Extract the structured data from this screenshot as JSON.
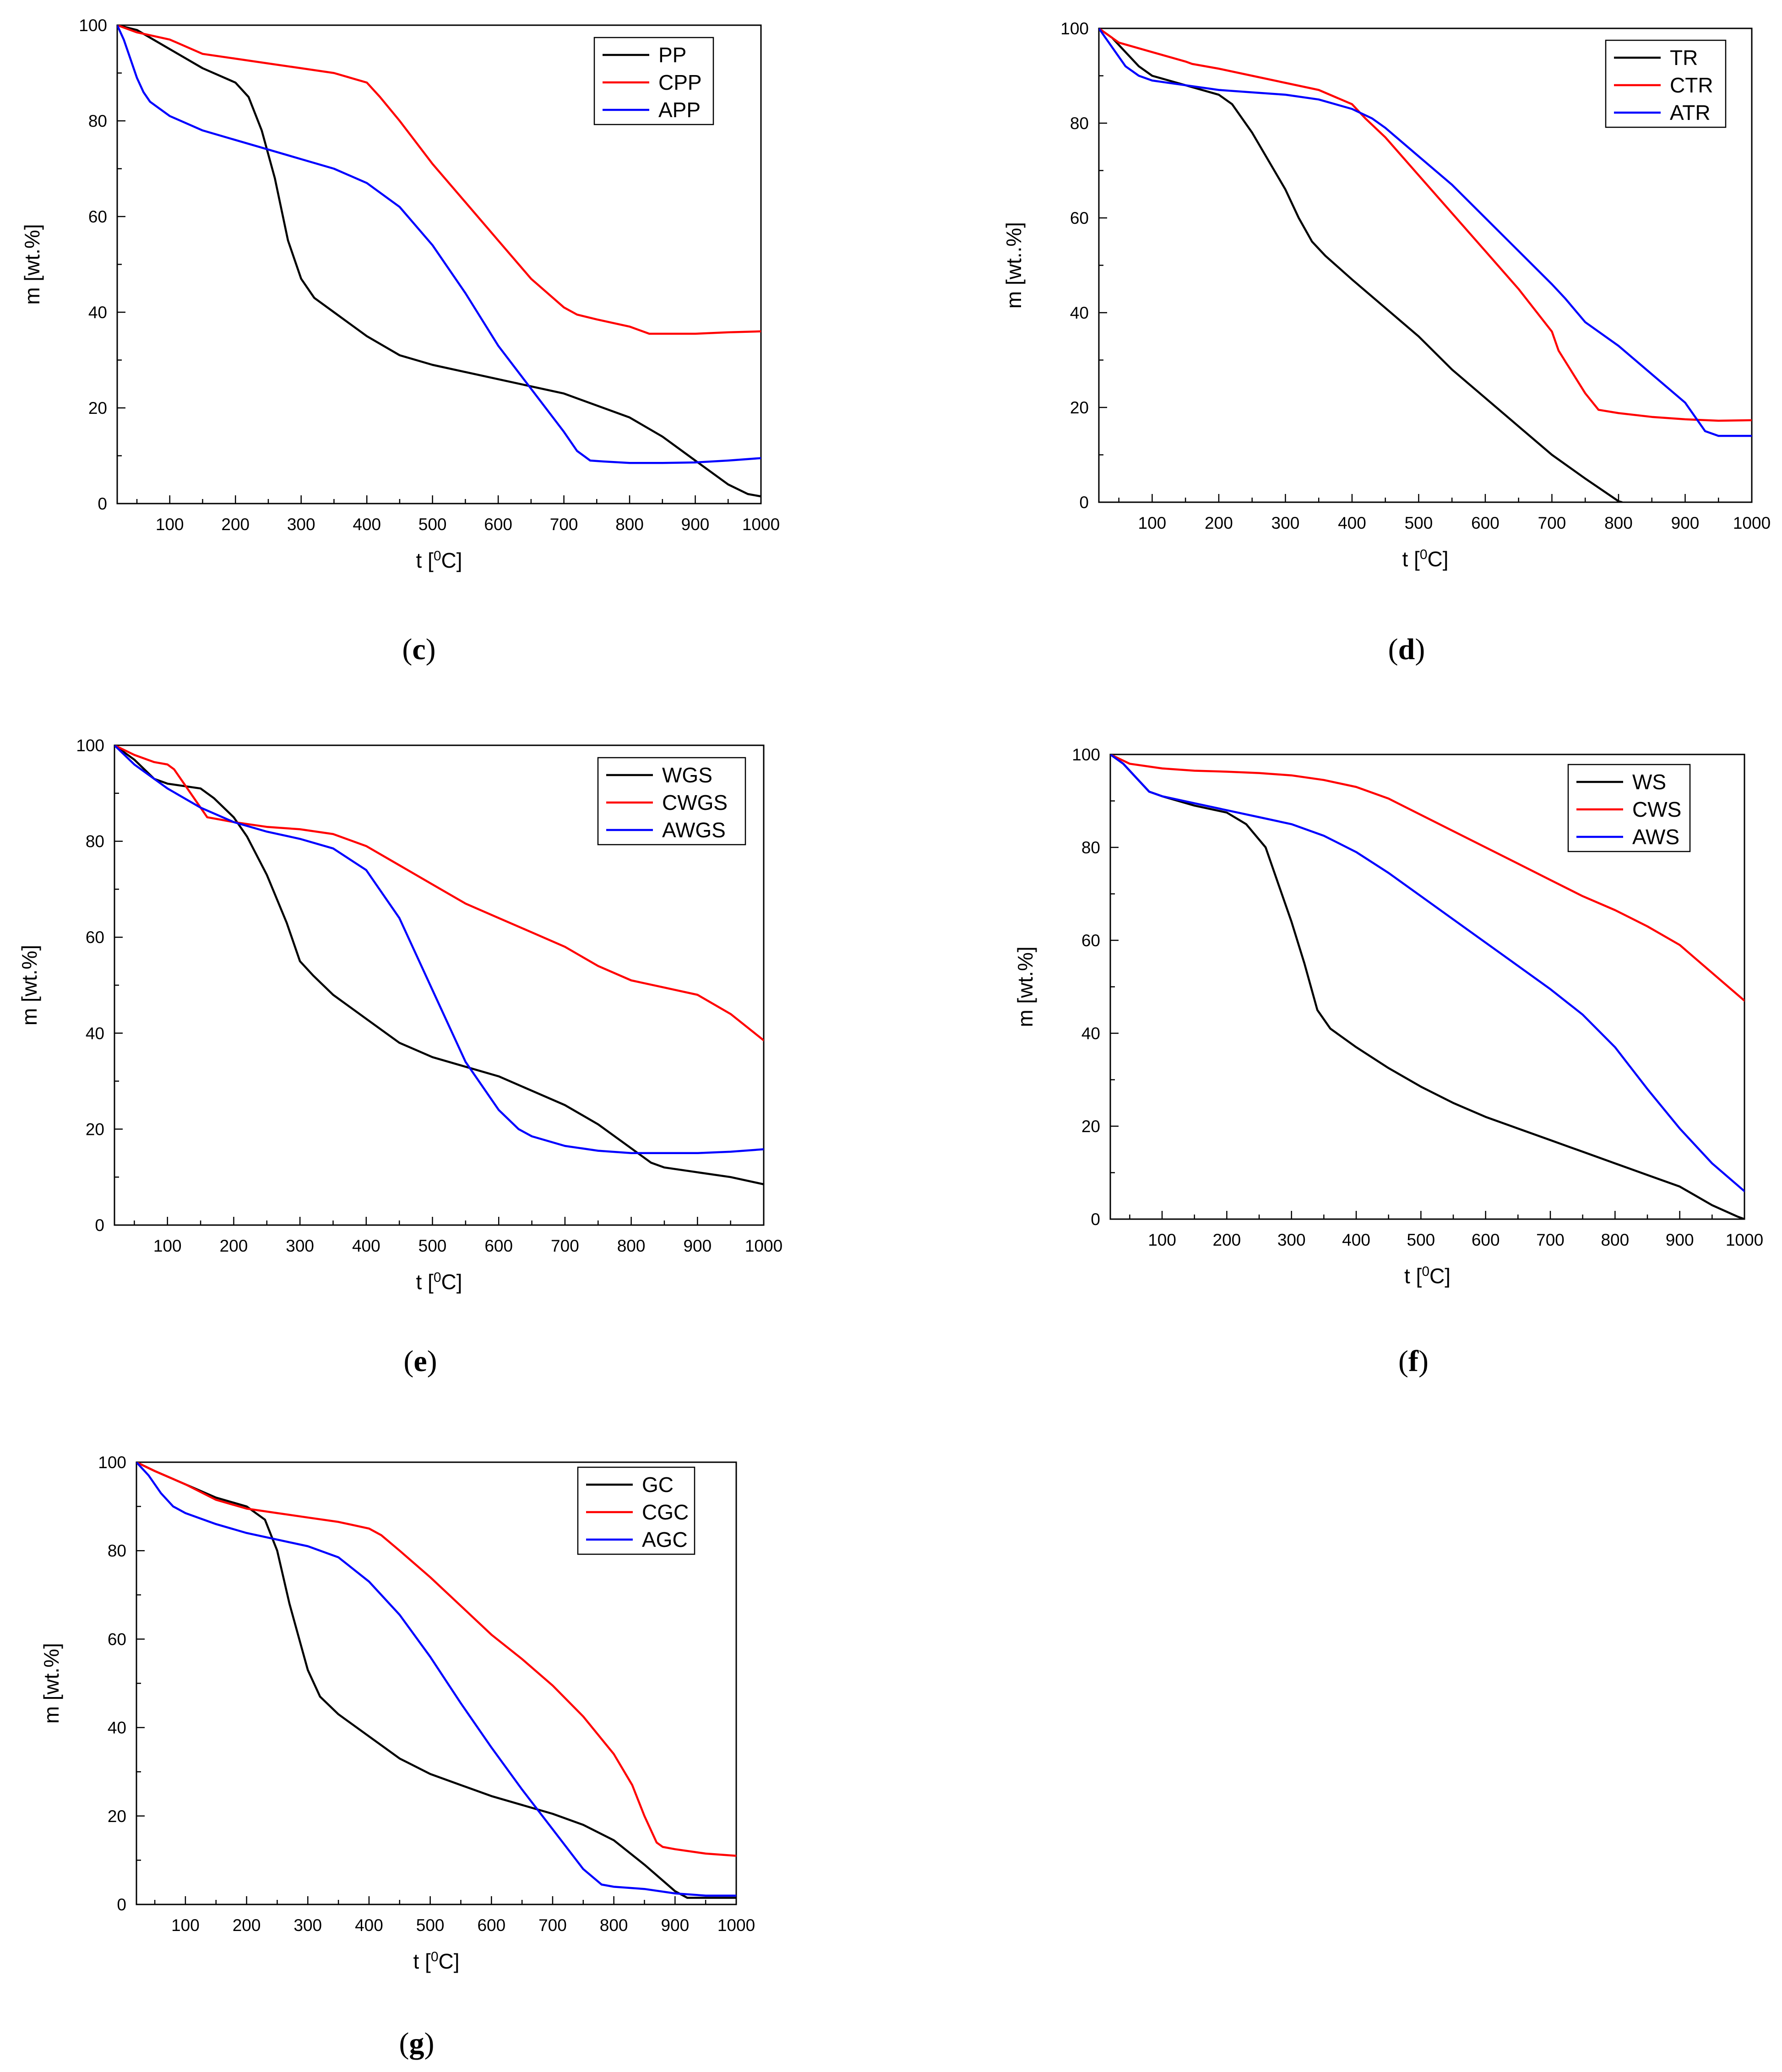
{
  "figure": {
    "panels": [
      "c",
      "d",
      "e",
      "f",
      "g"
    ]
  },
  "chart_data": [
    {
      "id": "c",
      "type": "line",
      "caption_letter": "c",
      "xlabel_base": "t  [",
      "xlabel_sup": "0",
      "xlabel_unit": "C]",
      "ylabel": "m [wt.%]",
      "xlim": [
        20,
        1000
      ],
      "ylim": [
        0,
        100
      ],
      "xticks": [
        100,
        200,
        300,
        400,
        500,
        600,
        700,
        800,
        900,
        1000
      ],
      "yticks": [
        0,
        20,
        40,
        60,
        80,
        100
      ],
      "legend_position": "top-right",
      "series": [
        {
          "name": "PP",
          "color": "#000000",
          "x": [
            20,
            50,
            100,
            150,
            200,
            220,
            240,
            260,
            280,
            300,
            320,
            350,
            400,
            450,
            500,
            600,
            700,
            800,
            850,
            900,
            950,
            980,
            1000
          ],
          "y": [
            100,
            99,
            95,
            91,
            88,
            85,
            78,
            68,
            55,
            47,
            43,
            40,
            35,
            31,
            29,
            26,
            23,
            18,
            14,
            9,
            4,
            2,
            1.5
          ]
        },
        {
          "name": "CPP",
          "color": "#ff0000",
          "x": [
            20,
            50,
            100,
            150,
            200,
            250,
            300,
            350,
            400,
            420,
            450,
            500,
            550,
            600,
            650,
            700,
            720,
            750,
            800,
            830,
            850,
            900,
            950,
            1000
          ],
          "y": [
            100,
            98.5,
            97,
            94,
            93,
            92,
            91,
            90,
            88,
            85,
            80,
            71,
            63,
            55,
            47,
            41,
            39.5,
            38.5,
            37,
            35.5,
            35.5,
            35.5,
            35.8,
            36
          ]
        },
        {
          "name": "APP",
          "color": "#0000ff",
          "x": [
            20,
            30,
            40,
            50,
            60,
            70,
            80,
            100,
            150,
            200,
            250,
            300,
            350,
            400,
            450,
            500,
            550,
            600,
            650,
            700,
            720,
            740,
            760,
            800,
            850,
            900,
            950,
            1000
          ],
          "y": [
            100,
            97,
            93,
            89,
            86,
            84,
            83,
            81,
            78,
            76,
            74,
            72,
            70,
            67,
            62,
            54,
            44,
            33,
            24,
            15,
            11,
            9,
            8.8,
            8.5,
            8.5,
            8.6,
            9,
            9.5
          ]
        }
      ]
    },
    {
      "id": "d",
      "type": "line",
      "caption_letter": "d",
      "xlabel_base": "t [",
      "xlabel_sup": "0",
      "xlabel_unit": "C]",
      "ylabel": "m [wt..%]",
      "xlim": [
        20,
        1000
      ],
      "ylim": [
        0,
        100
      ],
      "xticks": [
        100,
        200,
        300,
        400,
        500,
        600,
        700,
        800,
        900,
        1000
      ],
      "yticks": [
        0,
        20,
        40,
        60,
        80,
        100
      ],
      "legend_position": "top-right",
      "series": [
        {
          "name": "TR",
          "color": "#000000",
          "x": [
            20,
            40,
            60,
            80,
            100,
            150,
            200,
            220,
            250,
            300,
            320,
            340,
            360,
            400,
            450,
            500,
            550,
            600,
            650,
            700,
            750,
            800,
            805
          ],
          "y": [
            100,
            98,
            95,
            92,
            90,
            88,
            86,
            84,
            78,
            66,
            60,
            55,
            52,
            47,
            41,
            35,
            28,
            22,
            16,
            10,
            5,
            0.2,
            0
          ]
        },
        {
          "name": "CTR",
          "color": "#ff0000",
          "x": [
            20,
            50,
            100,
            150,
            160,
            200,
            250,
            300,
            350,
            400,
            420,
            450,
            500,
            550,
            600,
            650,
            700,
            710,
            750,
            770,
            800,
            850,
            900,
            950,
            1000
          ],
          "y": [
            100,
            97,
            95,
            93,
            92.5,
            91.5,
            90,
            88.5,
            87,
            84,
            81,
            77,
            69,
            61,
            53,
            45,
            36,
            32,
            23,
            19.5,
            18.8,
            18,
            17.5,
            17.2,
            17.3
          ]
        },
        {
          "name": "ATR",
          "color": "#0000ff",
          "x": [
            20,
            40,
            60,
            80,
            100,
            150,
            200,
            250,
            300,
            350,
            400,
            430,
            450,
            500,
            550,
            600,
            650,
            700,
            720,
            750,
            800,
            850,
            900,
            930,
            950,
            1000
          ],
          "y": [
            100,
            96,
            92,
            90,
            89,
            88,
            87,
            86.5,
            86,
            85,
            83,
            81,
            79,
            73,
            67,
            60,
            53,
            46,
            43,
            38,
            33,
            27,
            21,
            15,
            14,
            14
          ]
        }
      ]
    },
    {
      "id": "e",
      "type": "line",
      "caption_letter": "e",
      "xlabel_base": "t [",
      "xlabel_sup": "0",
      "xlabel_unit": "C]",
      "ylabel": "m [wt.%]",
      "xlim": [
        20,
        1000
      ],
      "ylim": [
        0,
        100
      ],
      "xticks": [
        100,
        200,
        300,
        400,
        500,
        600,
        700,
        800,
        900,
        1000
      ],
      "yticks": [
        0,
        20,
        40,
        60,
        80,
        100
      ],
      "legend_position": "top-right",
      "series": [
        {
          "name": "WGS",
          "color": "#000000",
          "x": [
            20,
            50,
            80,
            100,
            150,
            170,
            200,
            220,
            250,
            280,
            300,
            320,
            350,
            400,
            450,
            500,
            550,
            600,
            650,
            700,
            750,
            800,
            830,
            850,
            900,
            950,
            1000
          ],
          "y": [
            100,
            97,
            93,
            92,
            91,
            89,
            85,
            81,
            73,
            63,
            55,
            52,
            48,
            43,
            38,
            35,
            33,
            31,
            28,
            25,
            21,
            16,
            13,
            12,
            11,
            10,
            8.5
          ]
        },
        {
          "name": "CWGS",
          "color": "#ff0000",
          "x": [
            20,
            50,
            80,
            100,
            110,
            130,
            150,
            160,
            180,
            200,
            250,
            300,
            350,
            400,
            450,
            500,
            550,
            600,
            650,
            700,
            750,
            800,
            850,
            900,
            950,
            1000
          ],
          "y": [
            100,
            98,
            96.5,
            96,
            95,
            91,
            87,
            85,
            84.5,
            84,
            83,
            82.5,
            81.5,
            79,
            75,
            71,
            67,
            64,
            61,
            58,
            54,
            51,
            49.5,
            48,
            44,
            38.5
          ]
        },
        {
          "name": "AWGS",
          "color": "#0000ff",
          "x": [
            20,
            50,
            100,
            150,
            200,
            250,
            300,
            350,
            400,
            450,
            500,
            550,
            600,
            630,
            650,
            700,
            750,
            800,
            850,
            900,
            950,
            1000
          ],
          "y": [
            100,
            96,
            91,
            87,
            84,
            82,
            80.5,
            78.5,
            74,
            64,
            49,
            34,
            24,
            20,
            18.5,
            16.5,
            15.5,
            15,
            15,
            15,
            15.3,
            15.8
          ]
        }
      ]
    },
    {
      "id": "f",
      "type": "line",
      "caption_letter": "f",
      "xlabel_base": "t [",
      "xlabel_sup": "0",
      "xlabel_unit": "C]",
      "ylabel": "m [wt.%]",
      "xlim": [
        20,
        1000
      ],
      "ylim": [
        0,
        100
      ],
      "xticks": [
        100,
        200,
        300,
        400,
        500,
        600,
        700,
        800,
        900,
        1000
      ],
      "yticks": [
        0,
        20,
        40,
        60,
        80,
        100
      ],
      "legend_position": "top-right",
      "series": [
        {
          "name": "WS",
          "color": "#000000",
          "x": [
            20,
            40,
            60,
            80,
            100,
            150,
            200,
            230,
            260,
            280,
            300,
            320,
            340,
            360,
            380,
            400,
            450,
            500,
            550,
            600,
            650,
            700,
            750,
            800,
            850,
            900,
            950,
            990,
            1000
          ],
          "y": [
            100,
            98,
            95,
            92,
            91,
            89,
            87.5,
            85,
            80,
            72,
            64,
            55,
            45,
            41,
            39,
            37,
            32.5,
            28.5,
            25,
            22,
            19.5,
            17,
            14.5,
            12,
            9.5,
            7,
            3,
            0.5,
            0
          ]
        },
        {
          "name": "CWS",
          "color": "#ff0000",
          "x": [
            20,
            50,
            100,
            150,
            200,
            250,
            300,
            350,
            400,
            450,
            500,
            550,
            600,
            650,
            700,
            750,
            800,
            850,
            900,
            950,
            1000
          ],
          "y": [
            100,
            98,
            97,
            96.5,
            96.3,
            96,
            95.5,
            94.5,
            93,
            90.5,
            87,
            83.5,
            80,
            76.5,
            73,
            69.5,
            66.5,
            63,
            59,
            53,
            47
          ]
        },
        {
          "name": "AWS",
          "color": "#0000ff",
          "x": [
            20,
            40,
            60,
            80,
            100,
            150,
            200,
            250,
            300,
            350,
            400,
            450,
            500,
            550,
            600,
            650,
            700,
            750,
            800,
            850,
            900,
            950,
            1000
          ],
          "y": [
            100,
            98,
            95,
            92,
            91,
            89.5,
            88,
            86.5,
            85,
            82.5,
            79,
            74.5,
            69.5,
            64.5,
            59.5,
            54.5,
            49.5,
            44,
            37,
            28,
            19.5,
            12,
            6
          ]
        }
      ]
    },
    {
      "id": "g",
      "type": "line",
      "caption_letter": "g",
      "xlabel_base": "t [",
      "xlabel_sup": "0",
      "xlabel_unit": "C]",
      "ylabel": "m [wt.%]",
      "xlim": [
        20,
        1000
      ],
      "ylim": [
        0,
        100
      ],
      "xticks": [
        100,
        200,
        300,
        400,
        500,
        600,
        700,
        800,
        900,
        1000
      ],
      "yticks": [
        0,
        20,
        40,
        60,
        80,
        100
      ],
      "legend_position": "top-right",
      "series": [
        {
          "name": "GC",
          "color": "#000000",
          "x": [
            20,
            50,
            100,
            150,
            200,
            230,
            250,
            270,
            290,
            300,
            320,
            350,
            400,
            450,
            500,
            550,
            600,
            650,
            700,
            750,
            800,
            850,
            900,
            920,
            950,
            1000
          ],
          "y": [
            100,
            98,
            95,
            92,
            90,
            87,
            80,
            68,
            58,
            53,
            47,
            43,
            38,
            33,
            29.5,
            27,
            24.5,
            22.5,
            20.5,
            18,
            14.5,
            9,
            3,
            1.5,
            1.5,
            1.5
          ]
        },
        {
          "name": "CGC",
          "color": "#ff0000",
          "x": [
            20,
            50,
            100,
            150,
            200,
            250,
            300,
            350,
            400,
            420,
            450,
            500,
            550,
            600,
            650,
            700,
            750,
            800,
            830,
            850,
            870,
            880,
            900,
            950,
            1000
          ],
          "y": [
            100,
            98,
            95,
            91.5,
            89.5,
            88.5,
            87.5,
            86.5,
            85,
            83.5,
            80,
            74,
            67.5,
            61,
            55.5,
            49.5,
            42.5,
            34,
            27,
            20,
            14,
            13,
            12.5,
            11.5,
            11
          ]
        },
        {
          "name": "AGC",
          "color": "#0000ff",
          "x": [
            20,
            40,
            60,
            80,
            100,
            150,
            200,
            250,
            300,
            350,
            400,
            450,
            500,
            550,
            600,
            650,
            700,
            750,
            780,
            800,
            850,
            900,
            950,
            1000
          ],
          "y": [
            100,
            97,
            93,
            90,
            88.5,
            86,
            84,
            82.5,
            81,
            78.5,
            73,
            65.5,
            56,
            45.5,
            35.5,
            26,
            17,
            8,
            4.5,
            4,
            3.5,
            2.5,
            2,
            2
          ]
        }
      ]
    }
  ]
}
